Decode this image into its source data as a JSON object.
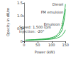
{
  "chart_data": {
    "type": "line",
    "x_label": "Power (kW)",
    "y_label": "Opacity in dB/m",
    "annotations": [
      "Speed: 1,500 rpm",
      "Injection: -20°"
    ],
    "x": [
      5,
      25,
      50,
      75,
      100,
      115,
      130,
      140,
      150
    ],
    "series": [
      {
        "name": "Diesel",
        "color": "#2fae4e",
        "values": [
          0.05,
          0.06,
          0.08,
          0.1,
          0.15,
          0.22,
          0.4,
          0.75,
          1.45
        ]
      },
      {
        "name": "FM emulsion",
        "color": "#2fae4e",
        "values": [
          0.05,
          0.06,
          0.07,
          0.09,
          0.12,
          0.17,
          0.3,
          0.55,
          1.25
        ]
      },
      {
        "name": "Emulsion 1",
        "color": "#2fae4e",
        "values": [
          0.04,
          0.05,
          0.06,
          0.07,
          0.09,
          0.12,
          0.18,
          0.27,
          0.45
        ]
      }
    ],
    "xlim": [
      0,
      150
    ],
    "xticks": [
      0,
      50,
      100,
      150
    ],
    "ylim": [
      0,
      1.5
    ],
    "yticks": [
      0,
      0.5,
      {
        "value": 1,
        "label": "1.0"
      },
      1.5
    ],
    "grid": false
  }
}
